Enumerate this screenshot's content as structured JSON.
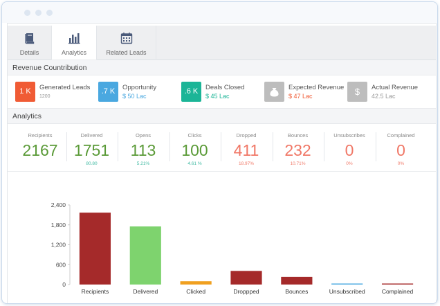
{
  "tabs": [
    {
      "label": "Details",
      "icon": "book-icon",
      "active": false
    },
    {
      "label": "Analytics",
      "icon": "bar-chart-icon",
      "active": true
    },
    {
      "label": "Related Leads",
      "icon": "calendar-icon",
      "active": false
    }
  ],
  "revenue": {
    "title": "Revenue Countribution",
    "items": [
      {
        "badge": "1 K",
        "label": "Generated Leads",
        "sub": "1200",
        "color": "#f05b35"
      },
      {
        "badge": ".7 K",
        "label": "Opportunity",
        "sub": "$ 50 Lac",
        "color": "#4aa8e0"
      },
      {
        "badge": ".6 K",
        "label": "Deals Closed",
        "sub": "$ 45 Lac",
        "color": "#1bb597"
      },
      {
        "badge": "money-bag-icon",
        "label": "Expected Revenue",
        "sub": "$ 47 Lac",
        "color": "#bdbdbd"
      },
      {
        "badge": "$",
        "label": "Actual Revenue",
        "sub": "42.5 Lac",
        "color": "#bdbdbd"
      }
    ]
  },
  "analytics": {
    "title": "Analytics",
    "stats": [
      {
        "label": "Recipients",
        "value": "2167",
        "pct": "",
        "tone": "green"
      },
      {
        "label": "Delivered",
        "value": "1751",
        "pct": "80.80",
        "tone": "green"
      },
      {
        "label": "Opens",
        "value": "113",
        "pct": "5.21%",
        "tone": "green"
      },
      {
        "label": "Clicks",
        "value": "100",
        "pct": "4.61 %",
        "tone": "green"
      },
      {
        "label": "Dropped",
        "value": "411",
        "pct": "18.97%",
        "tone": "red"
      },
      {
        "label": "Bounces",
        "value": "232",
        "pct": "10.71%",
        "tone": "red"
      },
      {
        "label": "Unsubscribes",
        "value": "0",
        "pct": "0%",
        "tone": "red"
      },
      {
        "label": "Complained",
        "value": "0",
        "pct": "0%",
        "tone": "red"
      }
    ]
  },
  "chart_data": {
    "type": "bar",
    "categories": [
      "Recipients",
      "Delivered",
      "Clicked",
      "Droppped",
      "Bounces",
      "Unsubscribed",
      "Complained"
    ],
    "values": [
      2167,
      1751,
      100,
      411,
      232,
      0,
      0
    ],
    "colors": [
      "#a52a2a",
      "#7ed36e",
      "#f0a020",
      "#a52a2a",
      "#a52a2a",
      "#4aa8e0",
      "#a52a2a"
    ],
    "yticks": [
      "0",
      "600",
      "1,200",
      "1,800",
      "2,400"
    ],
    "ylim": [
      0,
      2400
    ],
    "grid": false,
    "title": "",
    "xlabel": "",
    "ylabel": ""
  }
}
